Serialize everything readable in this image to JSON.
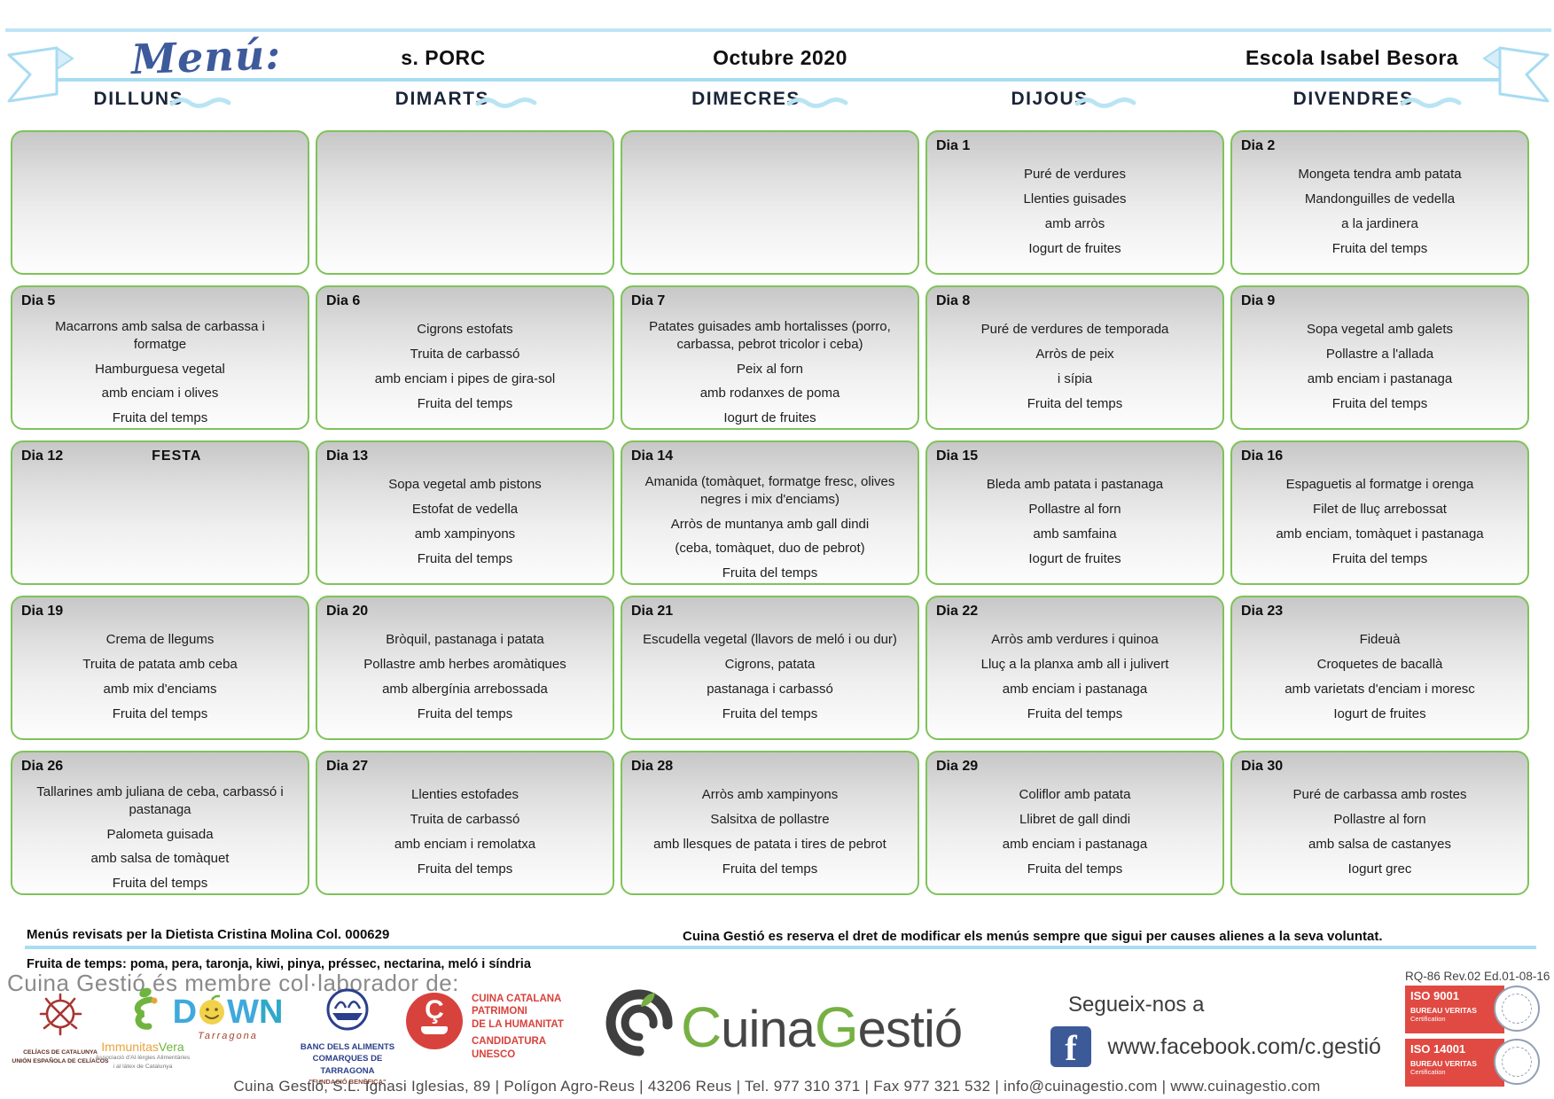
{
  "banner": {
    "title": "Menú:",
    "menu_type": "s. PORC",
    "month": "Octubre  2020",
    "school": "Escola Isabel Besora"
  },
  "weekdays": [
    "DILLUNS",
    "DIMARTS",
    "DIMECRES",
    "DIJOUS",
    "DIVENDRES"
  ],
  "weeks": [
    [
      {
        "day": "",
        "lines": []
      },
      {
        "day": "",
        "lines": []
      },
      {
        "day": "",
        "lines": []
      },
      {
        "day": "Dia 1",
        "lines": [
          "Puré de verdures",
          "Llenties guisades",
          "amb arròs",
          "Iogurt de fruites"
        ]
      },
      {
        "day": "Dia 2",
        "lines": [
          "Mongeta tendra amb patata",
          "Mandonguilles de vedella",
          "a la jardinera",
          "Fruita del temps"
        ]
      }
    ],
    [
      {
        "day": "Dia 5",
        "lines": [
          "Macarrons amb salsa de carbassa i formatge",
          "Hamburguesa vegetal",
          "amb enciam i olives",
          "Fruita del temps"
        ]
      },
      {
        "day": "Dia 6",
        "lines": [
          "Cigrons estofats",
          "Truita de carbassó",
          "amb enciam i pipes de gira-sol",
          "Fruita del temps"
        ]
      },
      {
        "day": "Dia 7",
        "lines": [
          "Patates guisades amb hortalisses (porro, carbassa, pebrot tricolor i ceba)",
          "Peix al forn",
          "amb rodanxes de poma",
          "Iogurt de fruites"
        ]
      },
      {
        "day": "Dia 8",
        "lines": [
          "Puré de verdures de temporada",
          "Arròs de peix",
          "i sípia",
          "Fruita del temps"
        ]
      },
      {
        "day": "Dia 9",
        "lines": [
          "Sopa vegetal amb galets",
          "Pollastre a l'allada",
          "amb enciam i pastanaga",
          "Fruita del temps"
        ]
      }
    ],
    [
      {
        "day": "Dia 12",
        "note": "FESTA",
        "lines": []
      },
      {
        "day": "Dia 13",
        "lines": [
          "Sopa vegetal amb pistons",
          "Estofat de vedella",
          "amb xampinyons",
          "Fruita del temps"
        ]
      },
      {
        "day": "Dia 14",
        "lines": [
          "Amanida (tomàquet, formatge fresc, olives negres i mix d'enciams)",
          "Arròs de muntanya amb gall dindi",
          "(ceba, tomàquet, duo de pebrot)",
          "Fruita del temps"
        ]
      },
      {
        "day": "Dia 15",
        "lines": [
          "Bleda amb patata i pastanaga",
          "Pollastre al forn",
          "amb samfaina",
          "Iogurt de fruites"
        ]
      },
      {
        "day": "Dia 16",
        "lines": [
          "Espaguetis al formatge i orenga",
          "Filet de lluç arrebossat",
          "amb enciam, tomàquet i pastanaga",
          "Fruita del temps"
        ]
      }
    ],
    [
      {
        "day": "Dia 19",
        "lines": [
          "Crema de llegums",
          "Truita de patata amb ceba",
          "amb mix d'enciams",
          "Fruita del temps"
        ]
      },
      {
        "day": "Dia 20",
        "lines": [
          "Bròquil, pastanaga i patata",
          "Pollastre amb herbes aromàtiques",
          "amb albergínia arrebossada",
          "Fruita del temps"
        ]
      },
      {
        "day": "Dia 21",
        "lines": [
          "Escudella vegetal (llavors de meló i ou dur)",
          "Cigrons, patata",
          "pastanaga i carbassó",
          "Fruita del temps"
        ]
      },
      {
        "day": "Dia 22",
        "lines": [
          "Arròs amb verdures i quinoa",
          "Lluç a la planxa amb all i julivert",
          "amb enciam i pastanaga",
          "Fruita del temps"
        ]
      },
      {
        "day": "Dia 23",
        "lines": [
          "Fideuà",
          "Croquetes de bacallà",
          "amb varietats d'enciam i moresc",
          "Iogurt de fruites"
        ]
      }
    ],
    [
      {
        "day": "Dia 26",
        "lines": [
          "Tallarines amb juliana de ceba, carbassó i pastanaga",
          "Palometa guisada",
          "amb salsa de tomàquet",
          "Fruita del temps"
        ]
      },
      {
        "day": "Dia 27",
        "lines": [
          "Llenties estofades",
          "Truita de carbassó",
          "amb enciam i remolatxa",
          "Fruita del temps"
        ]
      },
      {
        "day": "Dia 28",
        "lines": [
          "Arròs amb xampinyons",
          "Salsitxa de pollastre",
          "amb llesques de patata i tires de pebrot",
          "Fruita del temps"
        ]
      },
      {
        "day": "Dia 29",
        "lines": [
          "Coliflor amb patata",
          "Llibret de gall dindi",
          "amb enciam i pastanaga",
          "Fruita del temps"
        ]
      },
      {
        "day": "Dia 30",
        "lines": [
          "Puré de carbassa amb rostes",
          "Pollastre al forn",
          "amb salsa de castanyes",
          "Iogurt grec"
        ]
      }
    ]
  ],
  "footer": {
    "reviewed": "Menús revisats per la Dietista Cristina Molina  Col. 000629",
    "disclaimer": "Cuina Gestió es reserva el dret de modificar els menús sempre que sigui per causes alienes a la seva voluntat.",
    "seasonal_fruit": "Fruita de temps: poma, pera, taronja, kiwi, pinya, préssec, nectarina,  meló i síndria",
    "member": "Cuina Gestió és membre col·laborador de:",
    "doc_code": "RQ-86 Rev.02 Ed.01-08-16",
    "follow": "Segueix-nos a",
    "facebook_url": "www.facebook.com/c.gestió",
    "contact": "Cuina Gestió, S.L. Ignasi Iglesias, 89  |  Polígon Agro-Reus  |  43206 Reus  |  Tel. 977 310 371  |  Fax 977 321 532  |  info@cuinagestio.com  |  www.cuinagestio.com"
  },
  "brand": {
    "part1_initial": "C",
    "part1_rest": "uina",
    "part2_initial": "G",
    "part2_rest": "estió"
  },
  "partners": {
    "celiacs": {
      "line1": "CELÍACS DE CATALUNYA",
      "line2": "UNIÓN ESPAÑOLA DE CELÍACOS"
    },
    "immunitas": {
      "name1": "Immunitas",
      "name2": "Vera",
      "sub1": "Associació d'Al·lèrgies Alimentàries",
      "sub2": "i al làtex de Catalunya"
    },
    "down": {
      "d": "D",
      "w": "W",
      "n": "N",
      "city": "Tarragona"
    },
    "banc": {
      "line1": "BANC DELS ALIMENTS",
      "line2": "COMARQUES DE TARRAGONA",
      "line3": "\"FUNDACIÓ BENÈFICA\""
    },
    "cuina_catalana": {
      "badge": "Ç",
      "line1": "CUINA CATALANA",
      "line2": "PATRIMONI",
      "line3": "DE LA HUMANITAT",
      "line4": "CANDIDATURA",
      "line5": "UNESCO"
    }
  },
  "iso_badges": [
    {
      "code": "ISO 9001",
      "org": "BUREAU VERITAS",
      "cert": "Certification"
    },
    {
      "code": "ISO 14001",
      "org": "BUREAU VERITAS",
      "cert": "Certification"
    }
  ],
  "colors": {
    "cell_border_green": "#7fc35a",
    "accent_light_blue": "#a9ddf1",
    "title_blue": "#3d5a9b",
    "brand_green": "#76b043",
    "iso_red": "#e04a42",
    "facebook_blue": "#3d5a98"
  }
}
